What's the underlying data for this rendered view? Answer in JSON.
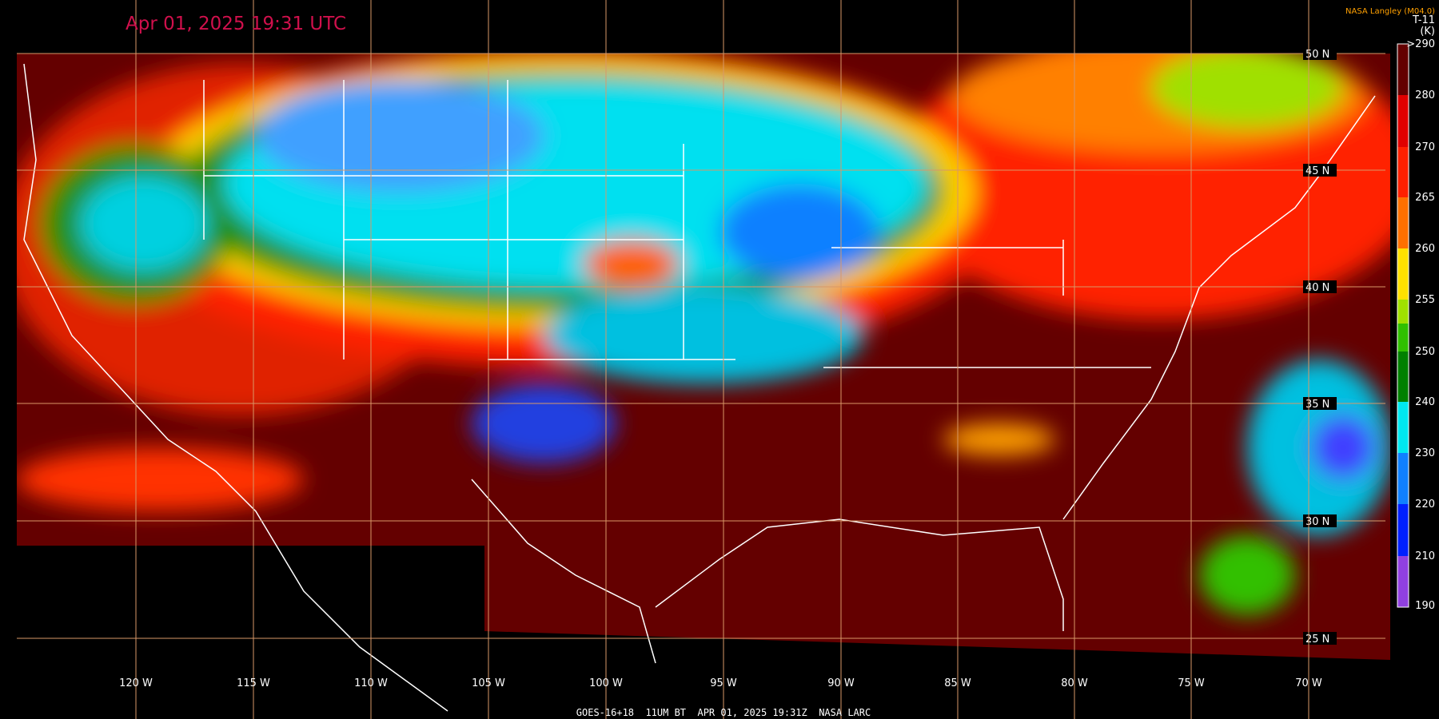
{
  "header": {
    "title": "Apr 01, 2025 19:31 UTC",
    "credit": "NASA Langley (M04.0)"
  },
  "colorbar": {
    "label": "T-11",
    "unit": "(K)",
    "ticks": [
      ">290",
      "280",
      "270",
      "265",
      "260",
      "255",
      "250",
      "240",
      "230",
      "220",
      "210",
      "190"
    ]
  },
  "grid": {
    "lat_labels": [
      "50 N",
      "45 N",
      "40 N",
      "35 N",
      "30 N",
      "25 N"
    ],
    "lon_labels": [
      "120 W",
      "115 W",
      "110 W",
      "105 W",
      "100 W",
      "95 W",
      "90 W",
      "85 W",
      "80 W",
      "75 W",
      "70 W"
    ]
  },
  "footer": "GOES-16+18  11UM BT  APR 01, 2025 19:31Z  NASA LARC"
}
